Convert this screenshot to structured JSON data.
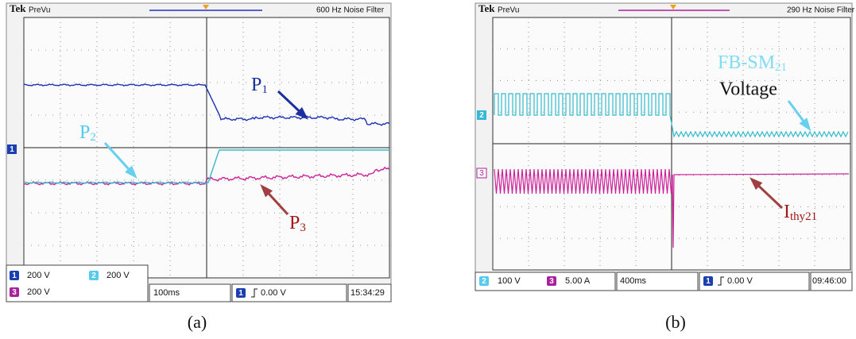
{
  "panel_a": {
    "header": {
      "brand": "Tek",
      "mode": "PreVu",
      "filter": "600 Hz  Noise Filter"
    },
    "labels": {
      "p1": "P",
      "p1_sub": "1",
      "p2": "P",
      "p2_sub": "2",
      "p3": "P",
      "p3_sub": "3"
    },
    "markers": {
      "ch1": "1"
    },
    "status": {
      "ch1_badge": "1",
      "ch1_scale": "200 V",
      "ch2_badge": "2",
      "ch2_scale": "200 V",
      "ch3_badge": "3",
      "ch3_scale": "200 V",
      "timebase": "100ms",
      "trig_badge": "1",
      "trigger": "0.00 V",
      "time": "15:34:29"
    },
    "caption": "(a)"
  },
  "panel_b": {
    "header": {
      "brand": "Tek",
      "mode": "PreVu",
      "filter": "290 Hz  Noise Filter"
    },
    "labels": {
      "voltage_main": "FB-SM",
      "voltage_sub": "21",
      "voltage_line2": "Voltage",
      "current_main": "I",
      "current_sub": "thy21"
    },
    "markers": {
      "ch2": "2",
      "ch3": "3"
    },
    "status": {
      "ch2_badge": "2",
      "ch2_scale": "100 V",
      "ch3_badge": "3",
      "ch3_scale": "5.00 A",
      "timebase": "400ms",
      "trig_badge": "1",
      "trigger": "0.00 V",
      "time": "09:46:00"
    },
    "caption": "(b)"
  }
}
